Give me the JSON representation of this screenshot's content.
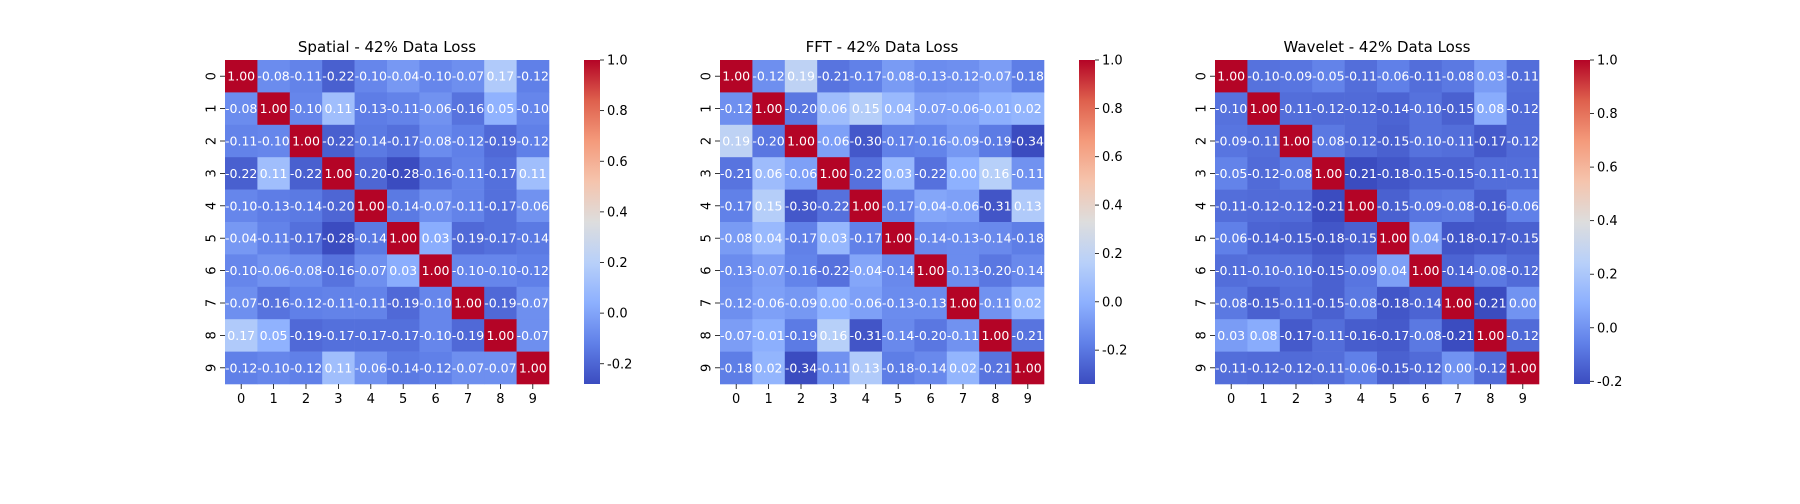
{
  "chart_data": [
    {
      "type": "heatmap",
      "title": "Spatial - 42% Data Loss",
      "x_ticks": [
        "0",
        "1",
        "2",
        "3",
        "4",
        "5",
        "6",
        "7",
        "8",
        "9"
      ],
      "y_ticks": [
        "0",
        "1",
        "2",
        "3",
        "4",
        "5",
        "6",
        "7",
        "8",
        "9"
      ],
      "colorscale": "coolwarm",
      "vmin": -0.28,
      "vmax": 1.0,
      "colorbar_ticks": [
        "-0.2",
        "0.0",
        "0.2",
        "0.4",
        "0.6",
        "0.8",
        "1.0"
      ],
      "colorbar_tick_values": [
        -0.2,
        0.0,
        0.2,
        0.4,
        0.6,
        0.8,
        1.0
      ],
      "values": [
        [
          1.0,
          -0.08,
          -0.11,
          -0.22,
          -0.1,
          -0.04,
          -0.1,
          -0.07,
          0.17,
          -0.12
        ],
        [
          -0.08,
          1.0,
          -0.1,
          0.11,
          -0.13,
          -0.11,
          -0.06,
          -0.16,
          0.05,
          -0.1
        ],
        [
          -0.11,
          -0.1,
          1.0,
          -0.22,
          -0.14,
          -0.17,
          -0.08,
          -0.12,
          -0.19,
          -0.12
        ],
        [
          -0.22,
          0.11,
          -0.22,
          1.0,
          -0.2,
          -0.28,
          -0.16,
          -0.11,
          -0.17,
          0.11
        ],
        [
          -0.1,
          -0.13,
          -0.14,
          -0.2,
          1.0,
          -0.14,
          -0.07,
          -0.11,
          -0.17,
          -0.06
        ],
        [
          -0.04,
          -0.11,
          -0.17,
          -0.28,
          -0.14,
          1.0,
          0.03,
          -0.19,
          -0.17,
          -0.14
        ],
        [
          -0.1,
          -0.06,
          -0.08,
          -0.16,
          -0.07,
          0.03,
          1.0,
          -0.1,
          -0.1,
          -0.12
        ],
        [
          -0.07,
          -0.16,
          -0.12,
          -0.11,
          -0.11,
          -0.19,
          -0.1,
          1.0,
          -0.19,
          -0.07
        ],
        [
          0.17,
          0.05,
          -0.19,
          -0.17,
          -0.17,
          -0.17,
          -0.1,
          -0.19,
          1.0,
          -0.07
        ],
        [
          -0.12,
          -0.1,
          -0.12,
          0.11,
          -0.06,
          -0.14,
          -0.12,
          -0.07,
          -0.07,
          1.0
        ]
      ]
    },
    {
      "type": "heatmap",
      "title": "FFT - 42% Data Loss",
      "x_ticks": [
        "0",
        "1",
        "2",
        "3",
        "4",
        "5",
        "6",
        "7",
        "8",
        "9"
      ],
      "y_ticks": [
        "0",
        "1",
        "2",
        "3",
        "4",
        "5",
        "6",
        "7",
        "8",
        "9"
      ],
      "colorscale": "coolwarm",
      "vmin": -0.34,
      "vmax": 1.0,
      "colorbar_ticks": [
        "-0.2",
        "0.0",
        "0.2",
        "0.4",
        "0.6",
        "0.8",
        "1.0"
      ],
      "colorbar_tick_values": [
        -0.2,
        0.0,
        0.2,
        0.4,
        0.6,
        0.8,
        1.0
      ],
      "values": [
        [
          1.0,
          -0.12,
          0.19,
          -0.21,
          -0.17,
          -0.08,
          -0.13,
          -0.12,
          -0.07,
          -0.18
        ],
        [
          -0.12,
          1.0,
          -0.2,
          0.06,
          0.15,
          0.04,
          -0.07,
          -0.06,
          -0.01,
          0.02
        ],
        [
          0.19,
          -0.2,
          1.0,
          -0.06,
          -0.3,
          -0.17,
          -0.16,
          -0.09,
          -0.19,
          -0.34
        ],
        [
          -0.21,
          0.06,
          -0.06,
          1.0,
          -0.22,
          0.03,
          -0.22,
          -0.0,
          0.16,
          -0.11
        ],
        [
          -0.17,
          0.15,
          -0.3,
          -0.22,
          1.0,
          -0.17,
          -0.04,
          -0.06,
          -0.31,
          0.13
        ],
        [
          -0.08,
          0.04,
          -0.17,
          0.03,
          -0.17,
          1.0,
          -0.14,
          -0.13,
          -0.14,
          -0.18
        ],
        [
          -0.13,
          -0.07,
          -0.16,
          -0.22,
          -0.04,
          -0.14,
          1.0,
          -0.13,
          -0.2,
          -0.14
        ],
        [
          -0.12,
          -0.06,
          -0.09,
          -0.0,
          -0.06,
          -0.13,
          -0.13,
          1.0,
          -0.11,
          0.02
        ],
        [
          -0.07,
          -0.01,
          -0.19,
          0.16,
          -0.31,
          -0.14,
          -0.2,
          -0.11,
          1.0,
          -0.21
        ],
        [
          -0.18,
          0.02,
          -0.34,
          -0.11,
          0.13,
          -0.18,
          -0.14,
          0.02,
          -0.21,
          1.0
        ]
      ]
    },
    {
      "type": "heatmap",
      "title": "Wavelet - 42% Data Loss",
      "x_ticks": [
        "0",
        "1",
        "2",
        "3",
        "4",
        "5",
        "6",
        "7",
        "8",
        "9"
      ],
      "y_ticks": [
        "0",
        "1",
        "2",
        "3",
        "4",
        "5",
        "6",
        "7",
        "8",
        "9"
      ],
      "colorscale": "coolwarm",
      "vmin": -0.21,
      "vmax": 1.0,
      "colorbar_ticks": [
        "-0.2",
        "0.0",
        "0.2",
        "0.4",
        "0.6",
        "0.8",
        "1.0"
      ],
      "colorbar_tick_values": [
        -0.2,
        0.0,
        0.2,
        0.4,
        0.6,
        0.8,
        1.0
      ],
      "values": [
        [
          1.0,
          -0.1,
          -0.09,
          -0.05,
          -0.11,
          -0.06,
          -0.11,
          -0.08,
          0.03,
          -0.11
        ],
        [
          -0.1,
          1.0,
          -0.11,
          -0.12,
          -0.12,
          -0.14,
          -0.1,
          -0.15,
          0.08,
          -0.12
        ],
        [
          -0.09,
          -0.11,
          1.0,
          -0.08,
          -0.12,
          -0.15,
          -0.1,
          -0.11,
          -0.17,
          -0.12
        ],
        [
          -0.05,
          -0.12,
          -0.08,
          1.0,
          -0.21,
          -0.18,
          -0.15,
          -0.15,
          -0.11,
          -0.11
        ],
        [
          -0.11,
          -0.12,
          -0.12,
          -0.21,
          1.0,
          -0.15,
          -0.09,
          -0.08,
          -0.16,
          -0.06
        ],
        [
          -0.06,
          -0.14,
          -0.15,
          -0.18,
          -0.15,
          1.0,
          0.04,
          -0.18,
          -0.17,
          -0.15
        ],
        [
          -0.11,
          -0.1,
          -0.1,
          -0.15,
          -0.09,
          0.04,
          1.0,
          -0.14,
          -0.08,
          -0.12
        ],
        [
          -0.08,
          -0.15,
          -0.11,
          -0.15,
          -0.08,
          -0.18,
          -0.14,
          1.0,
          -0.21,
          -0.0
        ],
        [
          0.03,
          0.08,
          -0.17,
          -0.11,
          -0.16,
          -0.17,
          -0.08,
          -0.21,
          1.0,
          -0.12
        ],
        [
          -0.11,
          -0.12,
          -0.12,
          -0.11,
          -0.06,
          -0.15,
          -0.12,
          -0.0,
          -0.12,
          1.0
        ]
      ]
    }
  ]
}
